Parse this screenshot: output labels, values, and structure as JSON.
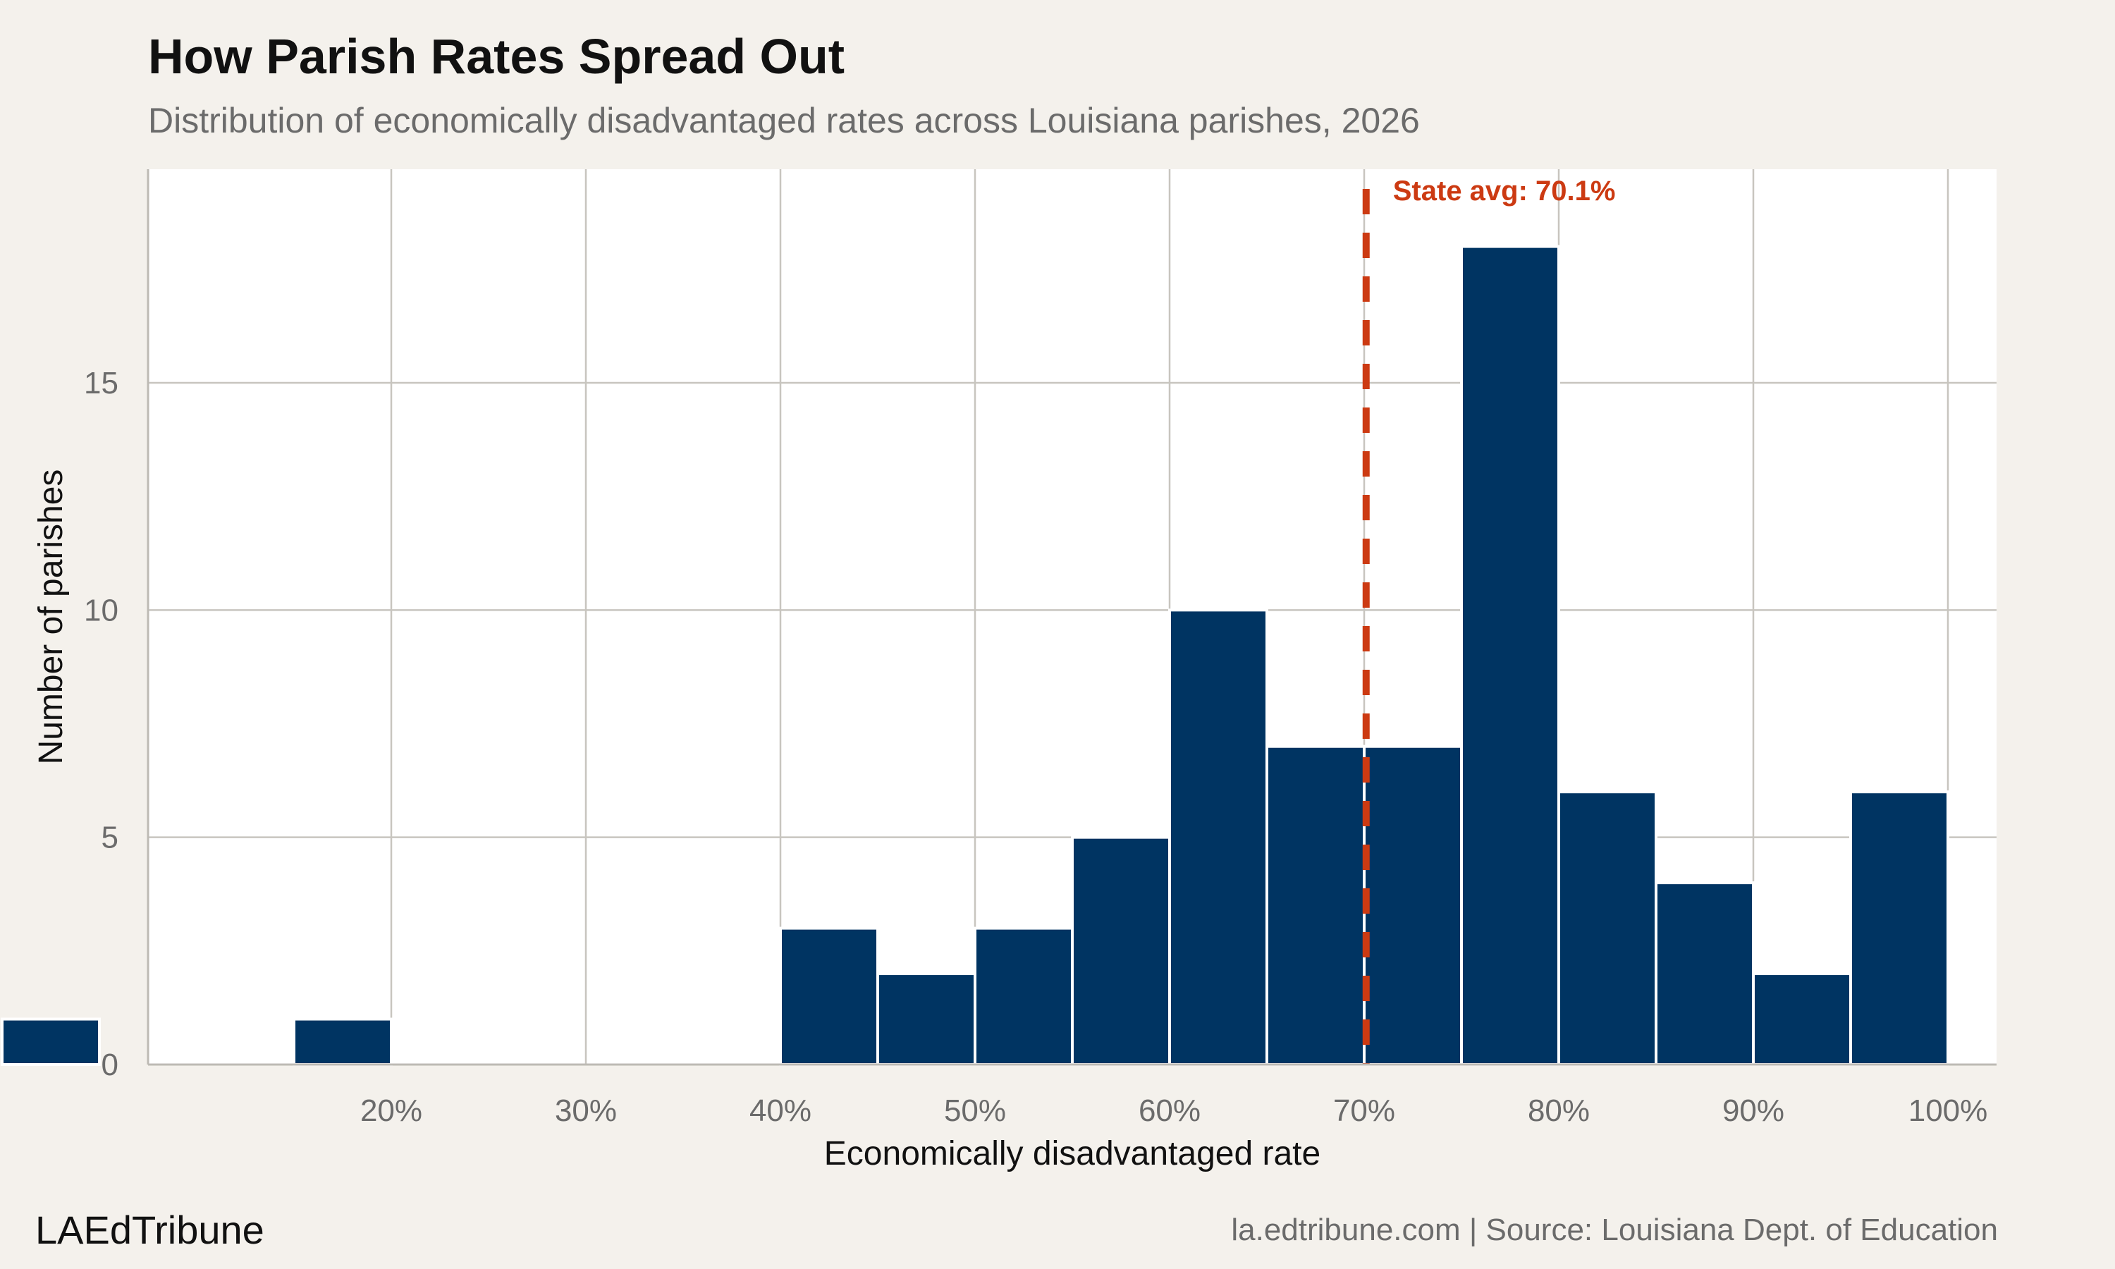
{
  "header": {
    "title": "How Parish Rates Spread Out",
    "subtitle": "Distribution of economically disadvantaged rates across Louisiana parishes, 2026"
  },
  "footer": {
    "brand": "LAEdTribune",
    "credit": "la.edtribune.com | Source: Louisiana Dept. of Education"
  },
  "colors": {
    "background": "#f4f1ec",
    "panel": "#ffffff",
    "bar": "#003462",
    "reference_line": "#cc3a12",
    "grid": "#c8c5bf"
  },
  "chart_data": {
    "type": "bar",
    "title": "How Parish Rates Spread Out",
    "subtitle": "Distribution of economically disadvantaged rates across Louisiana parishes, 2026",
    "xlabel": "Economically disadvantaged rate",
    "ylabel": "Number of parishes",
    "x_unit": "%",
    "xlim": [
      7.5,
      102.5
    ],
    "ylim": [
      0,
      19.7
    ],
    "x_ticks": [
      20,
      30,
      40,
      50,
      60,
      70,
      80,
      90,
      100
    ],
    "x_tick_labels": [
      "20%",
      "30%",
      "40%",
      "50%",
      "60%",
      "70%",
      "80%",
      "90%",
      "100%"
    ],
    "y_ticks": [
      0,
      5,
      10,
      15
    ],
    "y_tick_labels": [
      "0",
      "5",
      "10",
      "15"
    ],
    "bin_width": 5,
    "bins": [
      {
        "start": 0,
        "end": 5,
        "count": 1
      },
      {
        "start": 15,
        "end": 20,
        "count": 1
      },
      {
        "start": 40,
        "end": 45,
        "count": 3
      },
      {
        "start": 45,
        "end": 50,
        "count": 2
      },
      {
        "start": 50,
        "end": 55,
        "count": 3
      },
      {
        "start": 55,
        "end": 60,
        "count": 5
      },
      {
        "start": 60,
        "end": 65,
        "count": 10
      },
      {
        "start": 65,
        "end": 70,
        "count": 7
      },
      {
        "start": 70,
        "end": 75,
        "count": 7
      },
      {
        "start": 75,
        "end": 80,
        "count": 18
      },
      {
        "start": 80,
        "end": 85,
        "count": 6
      },
      {
        "start": 85,
        "end": 90,
        "count": 4
      },
      {
        "start": 90,
        "end": 95,
        "count": 2
      },
      {
        "start": 95,
        "end": 100,
        "count": 6
      }
    ],
    "reference_line": {
      "value": 70.1,
      "label": "State avg: 70.1%",
      "style": "dashed"
    },
    "grid": true,
    "legend": "none"
  }
}
